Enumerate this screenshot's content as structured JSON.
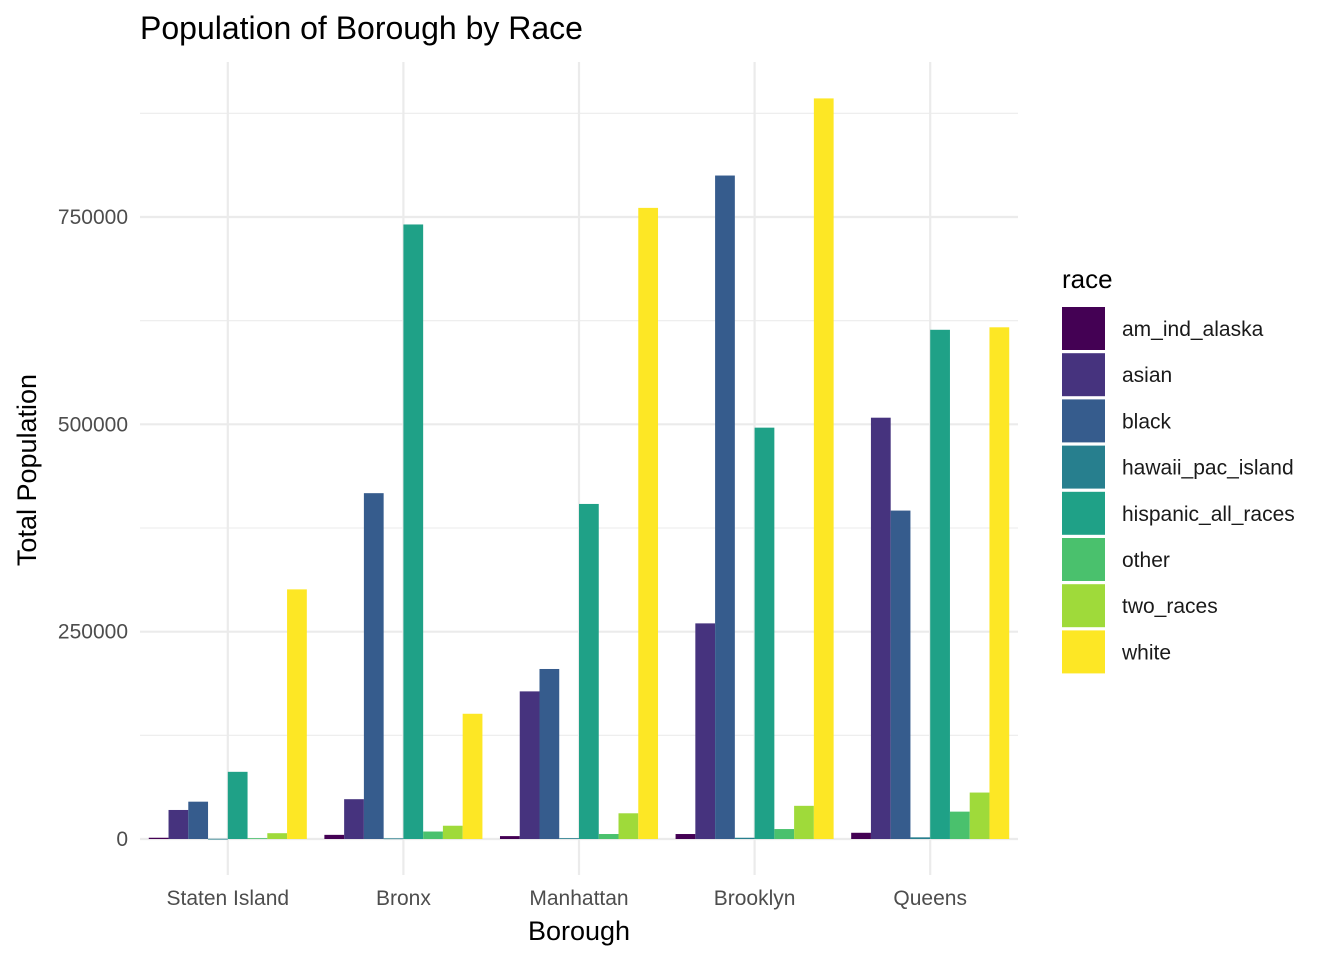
{
  "chart_data": {
    "type": "bar",
    "title": "Population of Borough by Race",
    "xlabel": "Borough",
    "ylabel": "Total Population",
    "ylim": [
      -60000,
      920000
    ],
    "yticks": [
      0,
      250000,
      500000,
      750000
    ],
    "ytick_labels": [
      "0",
      "250000",
      "500000",
      "750000"
    ],
    "grid": true,
    "legend_position": "right",
    "legend_title": "race",
    "categories": [
      "Staten Island",
      "Bronx",
      "Manhattan",
      "Brooklyn",
      "Queens"
    ],
    "series": [
      {
        "name": "am_ind_alaska",
        "color": "#440154",
        "values": [
          1500,
          5000,
          3500,
          6000,
          7500
        ]
      },
      {
        "name": "asian",
        "color": "#46337E",
        "values": [
          35000,
          48000,
          178000,
          260000,
          508000
        ]
      },
      {
        "name": "black",
        "color": "#365C8D",
        "values": [
          45000,
          417000,
          205000,
          800000,
          396000
        ]
      },
      {
        "name": "hawaii_pac_island",
        "color": "#277F8E",
        "values": [
          300,
          800,
          1000,
          1500,
          2000
        ]
      },
      {
        "name": "hispanic_all_races",
        "color": "#1FA187",
        "values": [
          81000,
          741000,
          404000,
          496000,
          614000
        ]
      },
      {
        "name": "other",
        "color": "#4AC16D",
        "values": [
          1000,
          9000,
          6000,
          12000,
          33000
        ]
      },
      {
        "name": "two_races",
        "color": "#9FDA3A",
        "values": [
          7000,
          16000,
          31000,
          40000,
          56000
        ]
      },
      {
        "name": "white",
        "color": "#FDE725",
        "values": [
          301000,
          151000,
          761000,
          893000,
          617000
        ]
      }
    ]
  }
}
